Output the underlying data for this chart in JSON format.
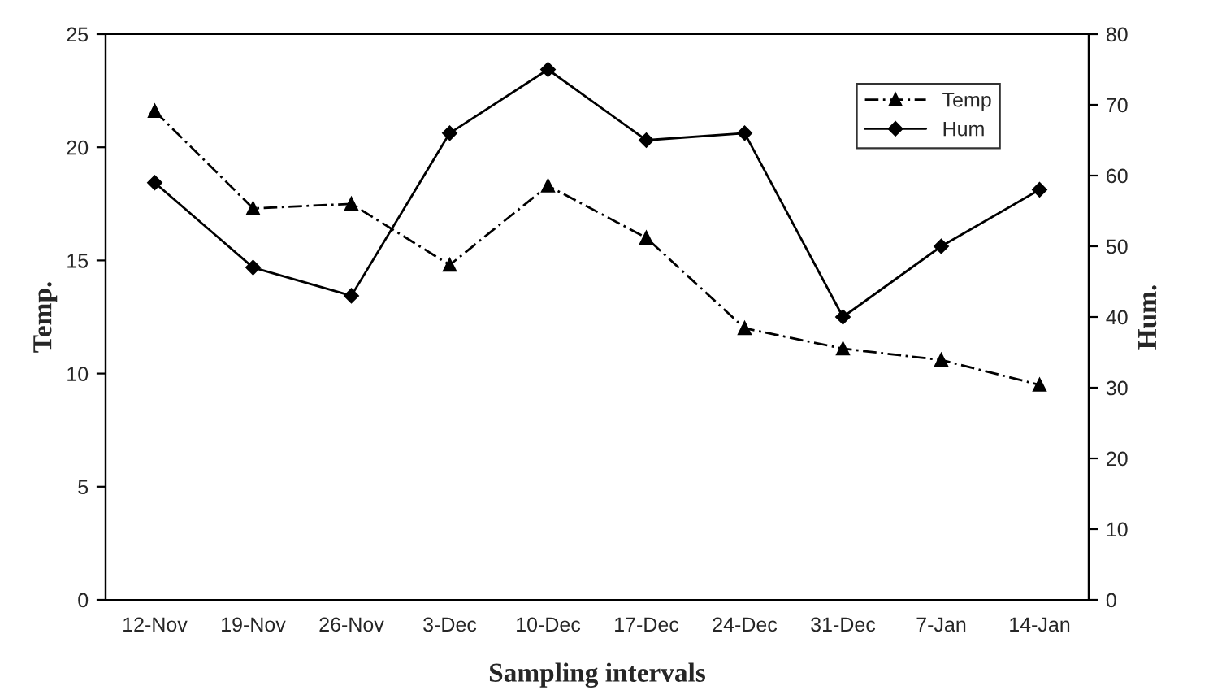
{
  "chart_data": {
    "type": "line",
    "xlabel": "Sampling intervals",
    "ylabel": "Temp.",
    "y2label": "Hum.",
    "categories": [
      "12-Nov",
      "19-Nov",
      "26-Nov",
      "3-Dec",
      "10-Dec",
      "17-Dec",
      "24-Dec",
      "31-Dec",
      "7-Jan",
      "14-Jan"
    ],
    "series": [
      {
        "name": "Temp",
        "color": "#000000",
        "marker": "triangle",
        "line_style": "dashed",
        "values": [
          21.6,
          17.3,
          17.5,
          14.8,
          18.3,
          16.0,
          12.0,
          11.1,
          10.6,
          9.5
        ]
      },
      {
        "name": "Hum",
        "color": "#000000",
        "marker": "diamond",
        "line_style": "solid",
        "axis": "y2",
        "values": [
          59,
          47,
          43,
          66,
          75,
          65,
          66,
          40,
          50,
          58
        ]
      }
    ],
    "ylim": [
      0,
      25
    ],
    "yticks": [
      0,
      5,
      10,
      15,
      20,
      25
    ],
    "y2lim": [
      0,
      80
    ],
    "y2ticks": [
      0,
      10,
      20,
      30,
      40,
      50,
      60,
      70,
      80
    ],
    "grid": false,
    "legend": "top right"
  }
}
